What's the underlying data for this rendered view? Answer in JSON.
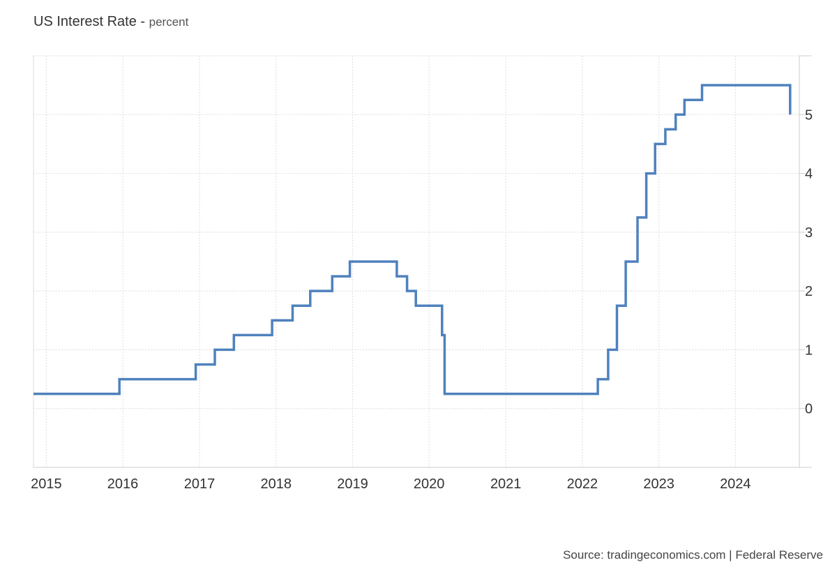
{
  "title": "US Interest Rate",
  "subtitle": "percent",
  "source": "Source: tradingeconomics.com | Federal Reserve",
  "chart_data": {
    "type": "line",
    "step": true,
    "title": "US Interest Rate",
    "subtitle": "percent",
    "xlabel": "",
    "ylabel": "",
    "x_ticks": [
      "2015",
      "2016",
      "2017",
      "2018",
      "2019",
      "2020",
      "2021",
      "2022",
      "2023",
      "2024"
    ],
    "y_ticks": [
      "0",
      "1",
      "2",
      "3",
      "4",
      "5"
    ],
    "xlim": [
      "2014-11-01",
      "2024-11-01"
    ],
    "ylim": [
      -1,
      6
    ],
    "grid": true,
    "y_axis_position": "right",
    "line_color": "#4f81bd",
    "series": [
      {
        "points": [
          [
            "2014-11-01",
            0.25
          ],
          [
            "2015-12-16",
            0.5
          ],
          [
            "2016-12-14",
            0.75
          ],
          [
            "2017-03-15",
            1.0
          ],
          [
            "2017-06-14",
            1.25
          ],
          [
            "2017-12-13",
            1.5
          ],
          [
            "2018-03-21",
            1.75
          ],
          [
            "2018-06-13",
            2.0
          ],
          [
            "2018-09-26",
            2.25
          ],
          [
            "2018-12-19",
            2.5
          ],
          [
            "2019-07-31",
            2.25
          ],
          [
            "2019-09-18",
            2.0
          ],
          [
            "2019-10-30",
            1.75
          ],
          [
            "2020-03-03",
            1.25
          ],
          [
            "2020-03-15",
            0.25
          ],
          [
            "2022-03-16",
            0.5
          ],
          [
            "2022-05-04",
            1.0
          ],
          [
            "2022-06-15",
            1.75
          ],
          [
            "2022-07-27",
            2.5
          ],
          [
            "2022-09-21",
            3.25
          ],
          [
            "2022-11-02",
            4.0
          ],
          [
            "2022-12-14",
            4.5
          ],
          [
            "2023-02-01",
            4.75
          ],
          [
            "2023-03-22",
            5.0
          ],
          [
            "2023-05-03",
            5.25
          ],
          [
            "2023-07-26",
            5.5
          ],
          [
            "2024-09-18",
            5.0
          ]
        ]
      }
    ]
  }
}
